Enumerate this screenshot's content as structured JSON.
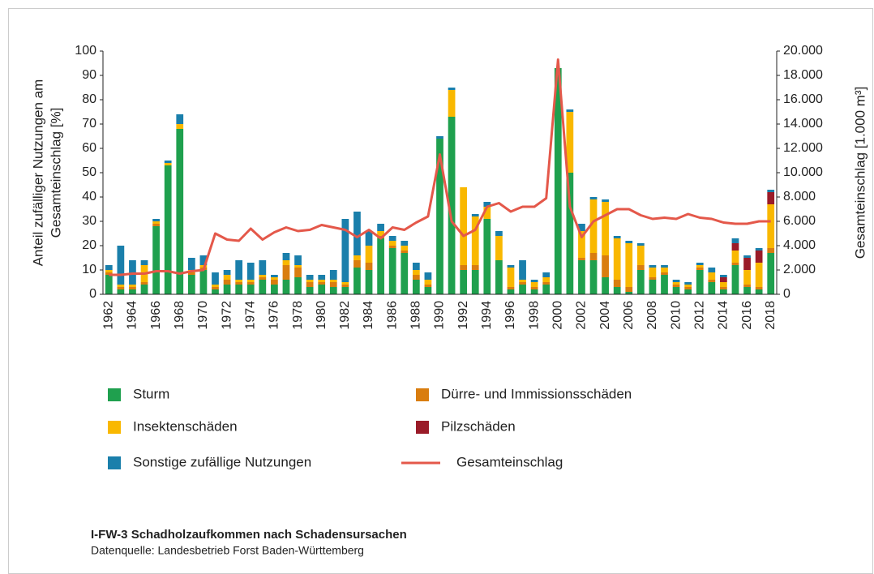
{
  "chart_data": {
    "type": "bar",
    "stacked": true,
    "ylabel": [
      "Anteil zufälliger Nutzungen am",
      "Gesamteinschlag [%]"
    ],
    "y2label": "Gesamteinschlag [1.000 m³]",
    "title": "I-FW-3 Schadholzaufkommen nach Schadensursachen",
    "source": "Datenquelle: Landesbetrieb Forst Baden-Württemberg",
    "categories": [
      "1962",
      null,
      "1964",
      null,
      "1966",
      null,
      "1968",
      null,
      "1970",
      null,
      "1972",
      null,
      "1974",
      null,
      "1976",
      null,
      "1978",
      null,
      "1980",
      null,
      "1982",
      null,
      "1984",
      null,
      "1986",
      null,
      "1988",
      null,
      "1990",
      null,
      "1992",
      null,
      "1994",
      null,
      "1996",
      null,
      "1998",
      null,
      "2000",
      null,
      "2002",
      null,
      "2004",
      null,
      "2006",
      null,
      "2008",
      null,
      "2010",
      null,
      "2012",
      null,
      "2014",
      null,
      "2016",
      null,
      "2018"
    ],
    "ylim": [
      0,
      100
    ],
    "yticks": [
      0,
      10,
      20,
      30,
      40,
      50,
      60,
      70,
      80,
      90,
      100
    ],
    "y2lim": [
      0,
      20000
    ],
    "y2ticks": [
      0,
      {
        "value": 2000,
        "label": "2.000"
      },
      {
        "value": 4000,
        "label": "4.000"
      },
      {
        "value": 6000,
        "label": "6.000"
      },
      {
        "value": 8000,
        "label": "8.000"
      },
      {
        "value": 10000,
        "label": "10.000"
      },
      {
        "value": 12000,
        "label": "12.000"
      },
      {
        "value": 14000,
        "label": "14.000"
      },
      {
        "value": 16000,
        "label": "16.000"
      },
      {
        "value": 18000,
        "label": "18.000"
      },
      {
        "value": 20000,
        "label": "20.000"
      }
    ],
    "grid": false,
    "series": [
      {
        "name": "Sturm",
        "color": "#1fa04e",
        "values": [
          8,
          2,
          2,
          4,
          28,
          53,
          68,
          8,
          10,
          2,
          4,
          4,
          4,
          6,
          4,
          6,
          7,
          3,
          4,
          3,
          3,
          11,
          10,
          23,
          19,
          17,
          6,
          3,
          64,
          73,
          10,
          10,
          31,
          14,
          2,
          4,
          2,
          4,
          93,
          50,
          14,
          14,
          7,
          3,
          1,
          10,
          6,
          8,
          3,
          2,
          10,
          5,
          2,
          12,
          3,
          2,
          17
        ]
      },
      {
        "name": "Dürre- und Immissionsschäden",
        "color": "#d97d0f",
        "values": [
          1,
          1,
          1,
          1,
          1,
          0,
          0,
          1,
          1,
          1,
          2,
          1,
          1,
          1,
          2,
          6,
          4,
          2,
          1,
          2,
          1,
          3,
          3,
          1,
          1,
          1,
          2,
          1,
          0,
          0,
          2,
          2,
          0,
          0,
          1,
          1,
          1,
          1,
          0,
          0,
          1,
          3,
          9,
          3,
          2,
          2,
          1,
          1,
          1,
          1,
          1,
          1,
          1,
          1,
          1,
          1,
          2
        ]
      },
      {
        "name": "Insektenschäden",
        "color": "#f9b800",
        "values": [
          1,
          1,
          1,
          7,
          1,
          1,
          2,
          1,
          1,
          1,
          2,
          1,
          1,
          1,
          1,
          2,
          1,
          1,
          1,
          1,
          1,
          2,
          7,
          2,
          2,
          2,
          2,
          2,
          0,
          11,
          32,
          20,
          5,
          10,
          8,
          1,
          2,
          2,
          0,
          25,
          11,
          22,
          22,
          17,
          18,
          8,
          4,
          2,
          1,
          1,
          1,
          3,
          2,
          5,
          6,
          10,
          18
        ]
      },
      {
        "name": "Pilzschäden",
        "color": "#9a1b28",
        "values": [
          0,
          0,
          0,
          0,
          0,
          0,
          0,
          0,
          0,
          0,
          0,
          0,
          0,
          0,
          0,
          0,
          0,
          0,
          0,
          0,
          0,
          0,
          0,
          0,
          0,
          0,
          0,
          0,
          0,
          0,
          0,
          0,
          0,
          0,
          0,
          0,
          0,
          0,
          0,
          0,
          0,
          0,
          0,
          0,
          0,
          0,
          0,
          0,
          0,
          0,
          0,
          0,
          2,
          3,
          5,
          5,
          5
        ]
      },
      {
        "name": "Sonstige zufällige Nutzungen",
        "color": "#1a7fab",
        "values": [
          2,
          16,
          10,
          2,
          1,
          1,
          4,
          5,
          4,
          5,
          2,
          8,
          7,
          6,
          1,
          3,
          4,
          2,
          2,
          4,
          26,
          18,
          6,
          3,
          2,
          2,
          3,
          3,
          1,
          1,
          0,
          1,
          2,
          2,
          1,
          8,
          1,
          2,
          0,
          1,
          3,
          1,
          1,
          1,
          1,
          1,
          1,
          1,
          1,
          1,
          1,
          2,
          1,
          2,
          1,
          1,
          1
        ]
      },
      {
        "name": "Gesamteinschlag",
        "type": "line",
        "axis": "y2",
        "color": "#e4584a",
        "values": [
          1600,
          1600,
          1700,
          1700,
          1900,
          1900,
          1700,
          1900,
          2000,
          5000,
          4500,
          4400,
          5400,
          4500,
          5100,
          5500,
          5200,
          5300,
          5700,
          5500,
          5300,
          4700,
          5300,
          4600,
          5500,
          5300,
          5900,
          6400,
          11500,
          6000,
          4800,
          5300,
          7200,
          7500,
          6800,
          7200,
          7200,
          7900,
          19300,
          7200,
          4700,
          6000,
          6500,
          7000,
          7000,
          6500,
          6200,
          6300,
          6200,
          6600,
          6300,
          6200,
          5900,
          5800,
          5800,
          6000,
          6000
        ]
      }
    ]
  }
}
